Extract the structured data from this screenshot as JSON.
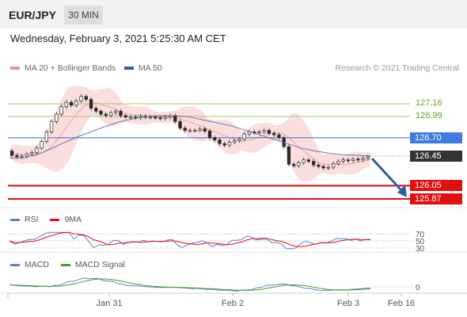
{
  "header": {
    "symbol": "EUR/JPY",
    "timeframe_button": "30 MIN"
  },
  "datetime_line": "Wednesday, February 3, 2021 5:25:30 AM CET",
  "credit": "Research © 2021 Trading Central",
  "chart_data": {
    "type": "line",
    "legend": [
      {
        "name": "MA 20 + Bollinger Bands",
        "color": "#f08c8c"
      },
      {
        "name": "MA 50",
        "color": "#3a5a9c"
      }
    ],
    "price_levels": [
      {
        "value": 127.16,
        "label": "127.16",
        "kind": "target",
        "color": "#9ccc65"
      },
      {
        "value": 126.99,
        "label": "126.99",
        "kind": "target",
        "color": "#9ccc65"
      },
      {
        "value": 126.7,
        "label": "126.70",
        "kind": "pivot",
        "color": "#3f7be0"
      },
      {
        "value": 126.45,
        "label": "126.45",
        "kind": "last",
        "color": "#333333"
      },
      {
        "value": 126.05,
        "label": "126.05",
        "kind": "support",
        "color": "#e01010"
      },
      {
        "value": 125.87,
        "label": "125.87",
        "kind": "support",
        "color": "#e01010"
      }
    ],
    "x_labels": [
      "Jan 31",
      "Feb 2",
      "Feb 3",
      "Feb 16"
    ],
    "price_series": [
      126.52,
      126.46,
      126.44,
      126.45,
      126.48,
      126.5,
      126.56,
      126.65,
      126.78,
      126.92,
      127.02,
      127.12,
      127.18,
      127.14,
      127.2,
      127.26,
      127.22,
      127.1,
      127.06,
      127.02,
      127.0,
      127.04,
      127.06,
      127.0,
      126.98,
      126.98,
      126.97,
      126.99,
      126.98,
      126.98,
      126.97,
      126.96,
      126.98,
      127.0,
      126.92,
      126.83,
      126.8,
      126.8,
      126.8,
      126.82,
      126.79,
      126.7,
      126.67,
      126.62,
      126.6,
      126.64,
      126.66,
      126.68,
      126.75,
      126.78,
      126.77,
      126.78,
      126.8,
      126.76,
      126.74,
      126.7,
      126.58,
      126.34,
      126.32,
      126.36,
      126.4,
      126.38,
      126.33,
      126.31,
      126.29,
      126.3,
      126.35,
      126.38,
      126.4,
      126.39,
      126.41,
      126.4,
      126.42,
      126.44
    ],
    "ma50_series": [
      126.42,
      126.43,
      126.47,
      126.55,
      126.64,
      126.72,
      126.79,
      126.86,
      126.92,
      126.96,
      126.99,
      127.0,
      127.0,
      126.98,
      126.94,
      126.9,
      126.86,
      126.8,
      126.74,
      126.68,
      126.62,
      126.56,
      126.52,
      126.49,
      126.47,
      126.46,
      126.45
    ],
    "rsi": {
      "name": "RSI",
      "signal_name": "9MA",
      "levels": [
        70,
        50,
        30
      ]
    },
    "macd": {
      "name": "MACD",
      "signal_name": "MACD Signal",
      "zero_label": "0"
    }
  }
}
